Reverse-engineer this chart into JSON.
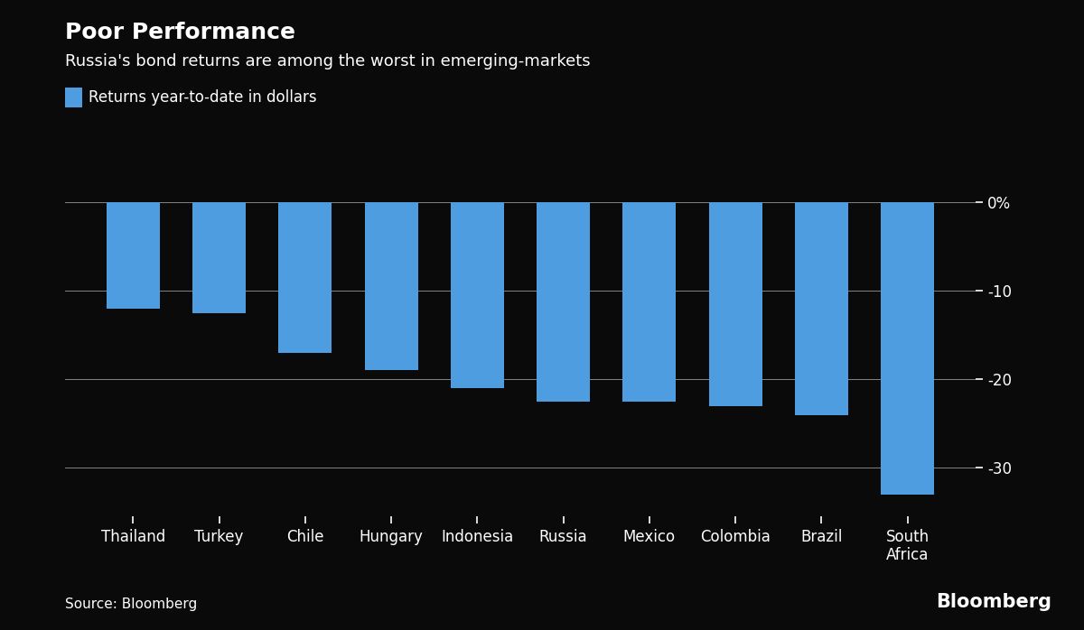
{
  "categories": [
    "Thailand",
    "Turkey",
    "Chile",
    "Hungary",
    "Indonesia",
    "Russia",
    "Mexico",
    "Colombia",
    "Brazil",
    "South\nAfrica"
  ],
  "values": [
    -12.0,
    -12.5,
    -17.0,
    -19.0,
    -21.0,
    -22.5,
    -22.5,
    -23.0,
    -24.0,
    -33.0
  ],
  "bar_color": "#4d9de0",
  "background_color": "#0a0a0a",
  "title": "Poor Performance",
  "subtitle": "Russia's bond returns are among the worst in emerging-markets",
  "legend_label": "Returns year-to-date in dollars",
  "source_text": "Source: Bloomberg",
  "bloomberg_text": "Bloomberg",
  "yticks": [
    0,
    -10,
    -20,
    -30
  ],
  "ytick_labels": [
    "0%",
    "-10",
    "-20",
    "-30"
  ],
  "ylim": [
    -35.5,
    1.5
  ],
  "title_fontsize": 18,
  "subtitle_fontsize": 13,
  "tick_fontsize": 12,
  "legend_fontsize": 12,
  "source_fontsize": 11,
  "bloomberg_fontsize": 15
}
